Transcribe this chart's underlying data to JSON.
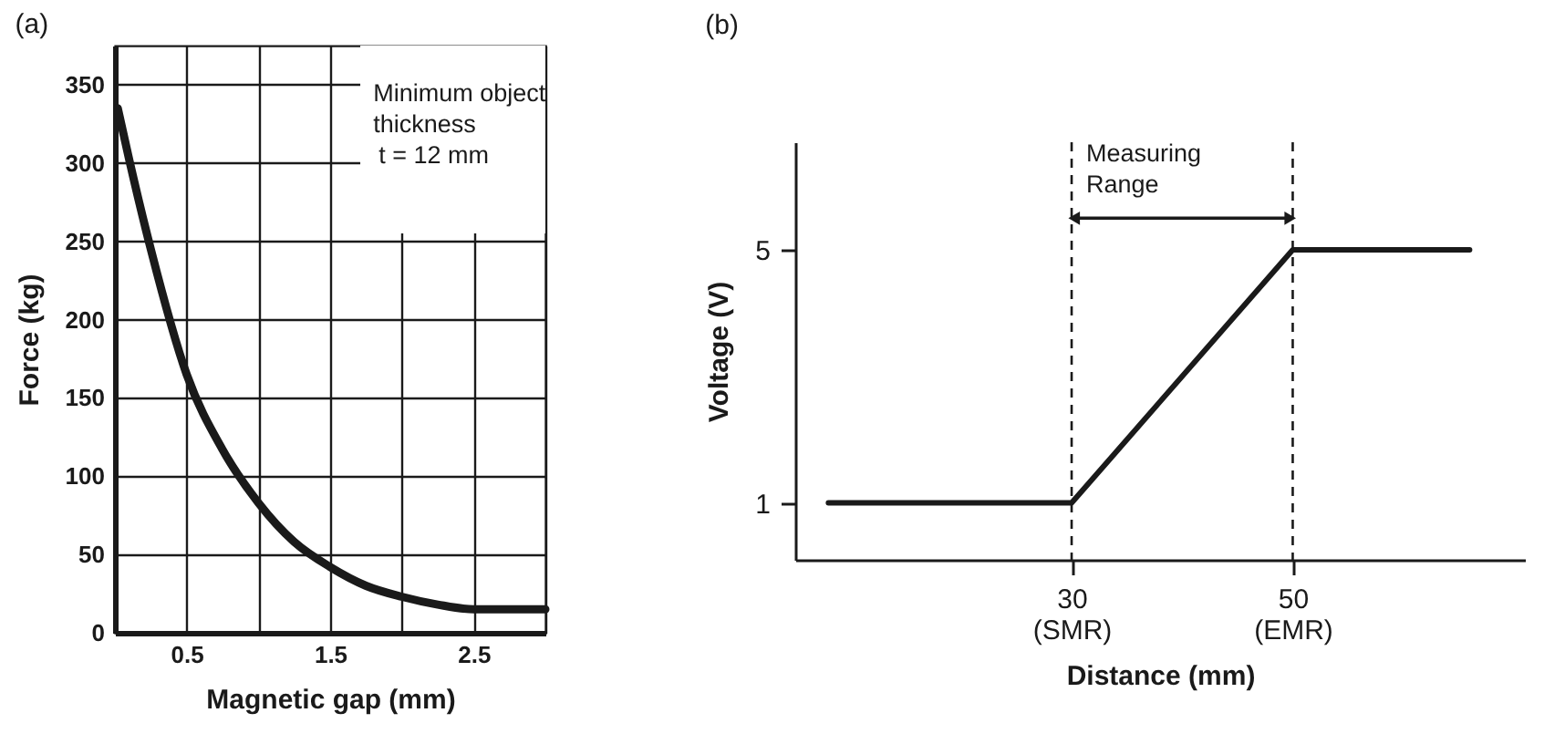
{
  "chart_data": [
    {
      "type": "line",
      "title": "(a)",
      "xlabel": "Magnetic gap  (mm)",
      "ylabel": "Force  (kg)",
      "x": [
        0.02,
        0.1,
        0.25,
        0.5,
        0.75,
        1,
        1.25,
        1.5,
        1.75,
        2,
        2.25,
        2.5,
        2.75,
        3
      ],
      "series": [
        {
          "color": "#1a1a1a",
          "values": [
            335,
            302,
            245,
            165,
            117,
            83,
            58,
            42,
            30,
            23,
            18,
            15,
            15,
            15
          ]
        }
      ],
      "xlim": [
        0,
        3
      ],
      "ylim": [
        0,
        375
      ],
      "xticks": [
        {
          "value": 0,
          "label": null
        },
        0.5,
        {
          "value": 1,
          "label": null
        },
        1.5,
        {
          "value": 2,
          "label": null
        },
        2.5,
        {
          "value": 3,
          "label": null
        }
      ],
      "yticks": [
        0,
        50,
        100,
        150,
        200,
        250,
        300,
        350
      ],
      "grid": true,
      "line_style": "solid",
      "annotations": [
        "Minimum object thickness",
        "t = 12 mm"
      ]
    },
    {
      "type": "line",
      "title": "(b)",
      "xlabel": "Distance  (mm)",
      "ylabel": "Voltage (V)",
      "x": [
        8,
        30,
        50,
        66
      ],
      "series": [
        {
          "color": "#1a1a1a",
          "values": [
            1,
            1,
            5,
            5
          ]
        }
      ],
      "xlim": [
        5,
        71
      ],
      "ylim": [
        0.1,
        6.7
      ],
      "xticks": [
        {
          "value": 30,
          "label": "30\n(SMR)"
        },
        {
          "value": 50,
          "label": "50\n(EMR)"
        }
      ],
      "yticks": [
        1,
        5
      ],
      "line_style": "solid",
      "ref_lines": [
        {
          "axis": "x",
          "value": 30,
          "line_style": "dashed",
          "color": "#1a1a1a"
        },
        {
          "axis": "x",
          "value": 50,
          "line_style": "dashed",
          "color": "#1a1a1a"
        }
      ],
      "annotations": [
        {
          "text": "Measuring Range",
          "x": 30,
          "y": 5.5
        }
      ]
    }
  ]
}
